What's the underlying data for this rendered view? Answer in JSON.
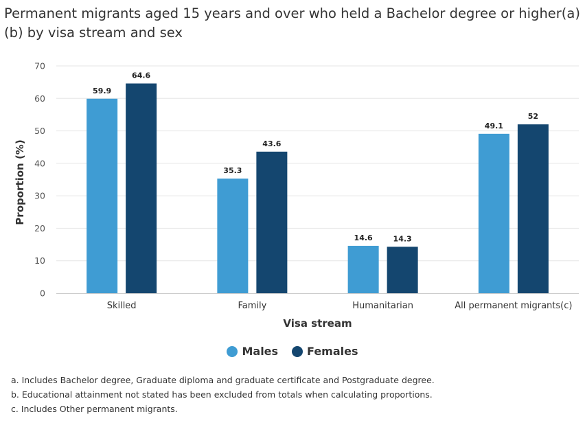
{
  "chart_data": {
    "type": "bar",
    "title": "Permanent migrants aged 15 years and over who held a Bachelor degree or higher(a)(b) by visa stream and sex",
    "xlabel": "Visa stream",
    "ylabel": "Proportion (%)",
    "ylim": [
      0,
      70
    ],
    "yticks": [
      0,
      10,
      20,
      30,
      40,
      50,
      60,
      70
    ],
    "grid": true,
    "legend_position": "bottom",
    "categories": [
      "Skilled",
      "Family",
      "Humanitarian",
      "All permanent migrants(c)"
    ],
    "series": [
      {
        "name": "Males",
        "color": "#3f9cd3",
        "values": [
          59.9,
          35.3,
          14.6,
          49.1
        ],
        "labels": [
          "59.9",
          "35.3",
          "14.6",
          "49.1"
        ]
      },
      {
        "name": "Females",
        "color": "#14466f",
        "values": [
          64.6,
          43.6,
          14.3,
          52
        ],
        "labels": [
          "64.6",
          "43.6",
          "14.3",
          "52"
        ]
      }
    ]
  },
  "footnotes": [
    "a. Includes Bachelor degree, Graduate diploma and graduate certificate and Postgraduate degree.",
    "b. Educational attainment not stated has been excluded from totals when calculating proportions.",
    "c. Includes Other permanent migrants."
  ]
}
